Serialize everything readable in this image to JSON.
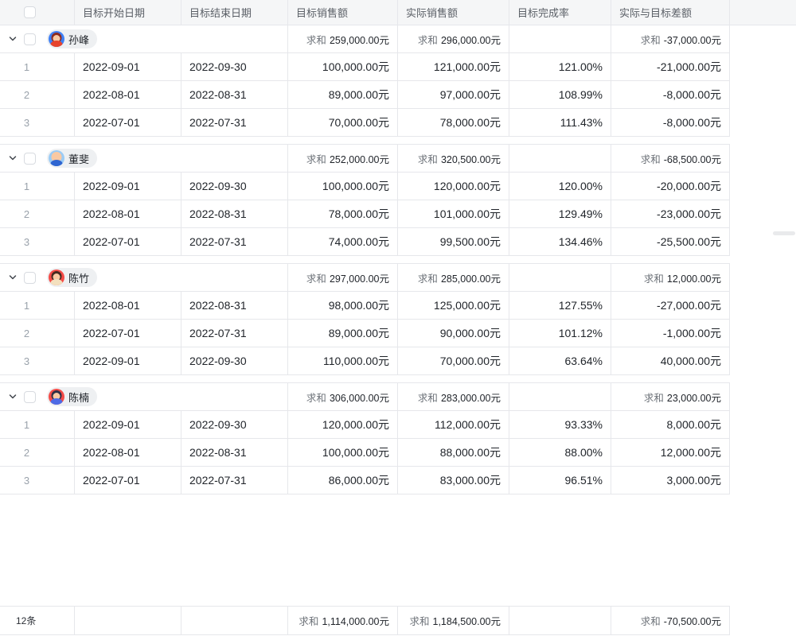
{
  "ui": {
    "sum_label": "求和"
  },
  "columns": [
    {
      "label": ""
    },
    {
      "label": "目标开始日期"
    },
    {
      "label": "目标结束日期"
    },
    {
      "label": "目标销售额"
    },
    {
      "label": "实际销售额"
    },
    {
      "label": "目标完成率"
    },
    {
      "label": "实际与目标差额"
    }
  ],
  "groups": [
    {
      "name": "孙峰",
      "avatar": {
        "bg": "#3D7FF5",
        "hair": "#8C2B20",
        "skin": "#F9C9A3",
        "shirt": "#E6432D"
      },
      "sum_target": "259,000.00元",
      "sum_actual": "296,000.00元",
      "sum_diff": "-37,000.00元",
      "rows": [
        {
          "num": "1",
          "start": "2022-09-01",
          "end": "2022-09-30",
          "target": "100,000.00元",
          "actual": "121,000.00元",
          "rate": "121.00%",
          "diff": "-21,000.00元"
        },
        {
          "num": "2",
          "start": "2022-08-01",
          "end": "2022-08-31",
          "target": "89,000.00元",
          "actual": "97,000.00元",
          "rate": "108.99%",
          "diff": "-8,000.00元"
        },
        {
          "num": "3",
          "start": "2022-07-01",
          "end": "2022-07-31",
          "target": "70,000.00元",
          "actual": "78,000.00元",
          "rate": "111.43%",
          "diff": "-8,000.00元"
        }
      ]
    },
    {
      "name": "董斐",
      "avatar": {
        "bg": "#9BCBF5",
        "hair": "#F9C9A3",
        "skin": "#F9C9A3",
        "shirt": "#2E65D1"
      },
      "sum_target": "252,000.00元",
      "sum_actual": "320,500.00元",
      "sum_diff": "-68,500.00元",
      "rows": [
        {
          "num": "1",
          "start": "2022-09-01",
          "end": "2022-09-30",
          "target": "100,000.00元",
          "actual": "120,000.00元",
          "rate": "120.00%",
          "diff": "-20,000.00元"
        },
        {
          "num": "2",
          "start": "2022-08-01",
          "end": "2022-08-31",
          "target": "78,000.00元",
          "actual": "101,000.00元",
          "rate": "129.49%",
          "diff": "-23,000.00元"
        },
        {
          "num": "3",
          "start": "2022-07-01",
          "end": "2022-07-31",
          "target": "74,000.00元",
          "actual": "99,500.00元",
          "rate": "134.46%",
          "diff": "-25,500.00元"
        }
      ]
    },
    {
      "name": "陈竹",
      "avatar": {
        "bg": "#F54B47",
        "hair": "#45291F",
        "skin": "#F9C9A3",
        "shirt": "#F3E0BE"
      },
      "sum_target": "297,000.00元",
      "sum_actual": "285,000.00元",
      "sum_diff": "12,000.00元",
      "rows": [
        {
          "num": "1",
          "start": "2022-08-01",
          "end": "2022-08-31",
          "target": "98,000.00元",
          "actual": "125,000.00元",
          "rate": "127.55%",
          "diff": "-27,000.00元"
        },
        {
          "num": "2",
          "start": "2022-07-01",
          "end": "2022-07-31",
          "target": "89,000.00元",
          "actual": "90,000.00元",
          "rate": "101.12%",
          "diff": "-1,000.00元"
        },
        {
          "num": "3",
          "start": "2022-09-01",
          "end": "2022-09-30",
          "target": "110,000.00元",
          "actual": "70,000.00元",
          "rate": "63.64%",
          "diff": "40,000.00元"
        }
      ]
    },
    {
      "name": "陈楠",
      "avatar": {
        "bg": "#F54B47",
        "hair": "#2F2F45",
        "skin": "#F9C9A3",
        "shirt": "#4E6BE6"
      },
      "sum_target": "306,000.00元",
      "sum_actual": "283,000.00元",
      "sum_diff": "23,000.00元",
      "rows": [
        {
          "num": "1",
          "start": "2022-09-01",
          "end": "2022-09-30",
          "target": "120,000.00元",
          "actual": "112,000.00元",
          "rate": "93.33%",
          "diff": "8,000.00元"
        },
        {
          "num": "2",
          "start": "2022-08-01",
          "end": "2022-08-31",
          "target": "100,000.00元",
          "actual": "88,000.00元",
          "rate": "88.00%",
          "diff": "12,000.00元"
        },
        {
          "num": "3",
          "start": "2022-07-01",
          "end": "2022-07-31",
          "target": "86,000.00元",
          "actual": "83,000.00元",
          "rate": "96.51%",
          "diff": "3,000.00元"
        }
      ]
    }
  ],
  "footer": {
    "count": "12条",
    "sum_target": "1,114,000.00元",
    "sum_actual": "1,184,500.00元",
    "sum_diff": "-70,500.00元"
  }
}
